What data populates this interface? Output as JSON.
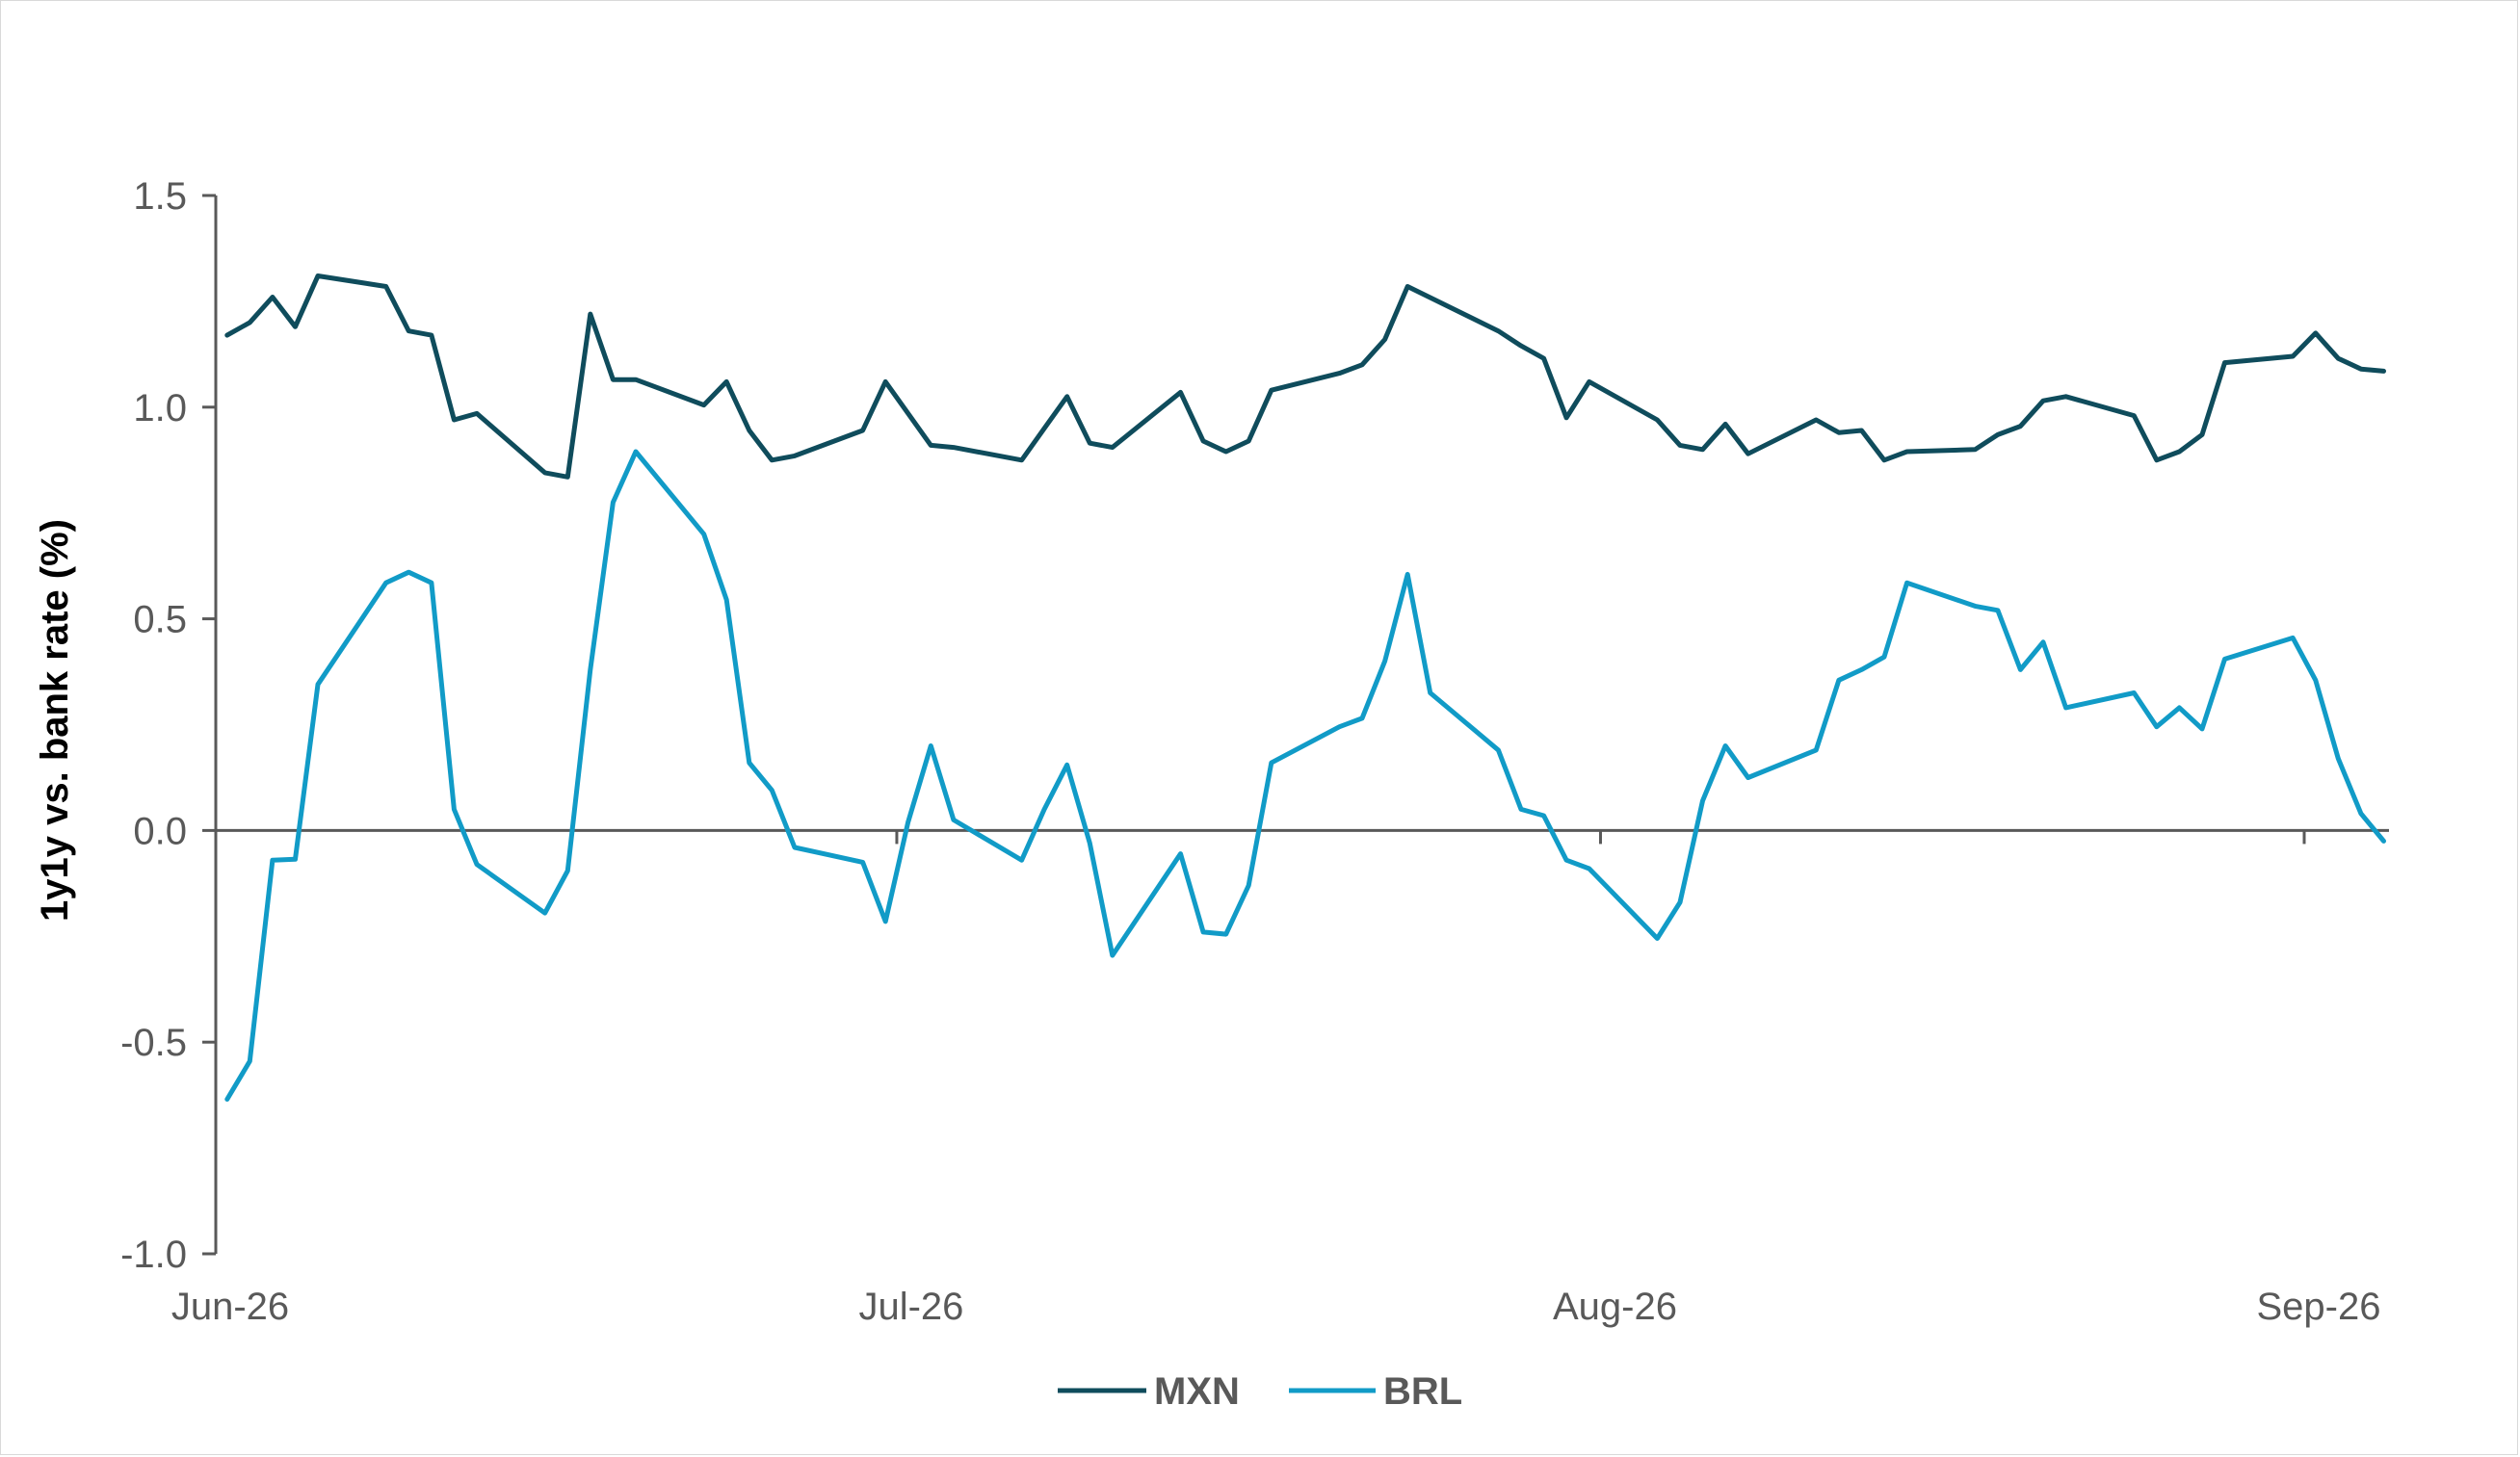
{
  "chart_data": {
    "type": "line",
    "ylabel": "1y1y vs. bank rate (%)",
    "xlabel": "",
    "ylim": [
      -1.0,
      1.5
    ],
    "yticks": [
      "1.5",
      "1.0",
      "0.5",
      "0.0",
      "-0.5",
      "-1.0"
    ],
    "yticks_values": [
      1.5,
      1.0,
      0.5,
      0.0,
      -0.5,
      -1.0
    ],
    "xlim": [
      0,
      92
    ],
    "xticks": [
      {
        "label": "Jun-26",
        "day": 0
      },
      {
        "label": "Jul-26",
        "day": 30
      },
      {
        "label": "Aug-26",
        "day": 61
      },
      {
        "label": "Sep-26",
        "day": 92
      }
    ],
    "grid": false,
    "legend_position": "bottom-center",
    "series": [
      {
        "name": "MXN",
        "color": "#0f4c5c",
        "points": [
          [
            0.5,
            1.17
          ],
          [
            1.5,
            1.2
          ],
          [
            2.5,
            1.26
          ],
          [
            3.5,
            1.19
          ],
          [
            4.5,
            1.31
          ],
          [
            7.5,
            1.285
          ],
          [
            8.5,
            1.18
          ],
          [
            9.5,
            1.17
          ],
          [
            10.5,
            0.97
          ],
          [
            11.5,
            0.985
          ],
          [
            14.5,
            0.845
          ],
          [
            15.5,
            0.835
          ],
          [
            16.5,
            1.22
          ],
          [
            17.5,
            1.065
          ],
          [
            18.5,
            1.065
          ],
          [
            21.5,
            1.005
          ],
          [
            22.5,
            1.06
          ],
          [
            23.5,
            0.945
          ],
          [
            24.5,
            0.875
          ],
          [
            25.5,
            0.885
          ],
          [
            28.5,
            0.945
          ],
          [
            29.5,
            1.06
          ],
          [
            31.5,
            0.91
          ],
          [
            32.5,
            0.905
          ],
          [
            35.5,
            0.875
          ],
          [
            36.5,
            0.95
          ],
          [
            37.5,
            1.025
          ],
          [
            38.5,
            0.915
          ],
          [
            39.5,
            0.905
          ],
          [
            42.5,
            1.035
          ],
          [
            43.5,
            0.92
          ],
          [
            44.5,
            0.895
          ],
          [
            45.5,
            0.92
          ],
          [
            46.5,
            1.04
          ],
          [
            49.5,
            1.08
          ],
          [
            50.5,
            1.1
          ],
          [
            51.5,
            1.16
          ],
          [
            52.5,
            1.285
          ],
          [
            56.5,
            1.18
          ],
          [
            57.5,
            1.145
          ],
          [
            58.5,
            1.115
          ],
          [
            59.5,
            0.975
          ],
          [
            60.5,
            1.06
          ],
          [
            63.5,
            0.97
          ],
          [
            64.5,
            0.91
          ],
          [
            65.5,
            0.9
          ],
          [
            66.5,
            0.96
          ],
          [
            67.5,
            0.89
          ],
          [
            70.5,
            0.97
          ],
          [
            71.5,
            0.94
          ],
          [
            72.5,
            0.945
          ],
          [
            73.5,
            0.875
          ],
          [
            74.5,
            0.895
          ],
          [
            77.5,
            0.9
          ],
          [
            78.5,
            0.935
          ],
          [
            79.5,
            0.955
          ],
          [
            80.5,
            1.015
          ],
          [
            81.5,
            1.025
          ],
          [
            84.5,
            0.98
          ],
          [
            85.5,
            0.875
          ],
          [
            86.5,
            0.895
          ],
          [
            87.5,
            0.935
          ],
          [
            88.5,
            1.105
          ],
          [
            91.5,
            1.12
          ],
          [
            92.5,
            1.175
          ],
          [
            93.5,
            1.115
          ],
          [
            94.5,
            1.09
          ],
          [
            95.5,
            1.085
          ]
        ]
      },
      {
        "name": "BRL",
        "color": "#119bc7",
        "points": [
          [
            0.5,
            -0.635
          ],
          [
            1.5,
            -0.545
          ],
          [
            2.5,
            -0.07
          ],
          [
            3.5,
            -0.068
          ],
          [
            4.5,
            0.345
          ],
          [
            7.5,
            0.585
          ],
          [
            8.5,
            0.61
          ],
          [
            9.5,
            0.585
          ],
          [
            10.5,
            0.05
          ],
          [
            11.5,
            -0.08
          ],
          [
            14.5,
            -0.195
          ],
          [
            15.5,
            -0.095
          ],
          [
            16.5,
            0.38
          ],
          [
            17.5,
            0.775
          ],
          [
            18.5,
            0.895
          ],
          [
            21.5,
            0.7
          ],
          [
            22.5,
            0.545
          ],
          [
            23.5,
            0.16
          ],
          [
            24.5,
            0.095
          ],
          [
            25.5,
            -0.04
          ],
          [
            28.5,
            -0.075
          ],
          [
            29.5,
            -0.215
          ],
          [
            30.5,
            0.02
          ],
          [
            31.5,
            0.2
          ],
          [
            32.5,
            0.025
          ],
          [
            35.5,
            -0.07
          ],
          [
            36.5,
            0.05
          ],
          [
            37.5,
            0.155
          ],
          [
            38.5,
            -0.03
          ],
          [
            39.5,
            -0.295
          ],
          [
            42.5,
            -0.055
          ],
          [
            43.5,
            -0.24
          ],
          [
            44.5,
            -0.245
          ],
          [
            45.5,
            -0.13
          ],
          [
            46.5,
            0.16
          ],
          [
            49.5,
            0.245
          ],
          [
            50.5,
            0.265
          ],
          [
            51.5,
            0.4
          ],
          [
            52.5,
            0.605
          ],
          [
            53.5,
            0.325
          ],
          [
            56.5,
            0.19
          ],
          [
            57.5,
            0.05
          ],
          [
            58.5,
            0.035
          ],
          [
            59.5,
            -0.07
          ],
          [
            60.5,
            -0.09
          ],
          [
            63.5,
            -0.255
          ],
          [
            64.5,
            -0.17
          ],
          [
            65.5,
            0.07
          ],
          [
            66.5,
            0.2
          ],
          [
            67.5,
            0.125
          ],
          [
            70.5,
            0.19
          ],
          [
            71.5,
            0.355
          ],
          [
            72.5,
            0.38
          ],
          [
            73.5,
            0.41
          ],
          [
            74.5,
            0.585
          ],
          [
            77.5,
            0.53
          ],
          [
            78.5,
            0.52
          ],
          [
            79.5,
            0.38
          ],
          [
            80.5,
            0.445
          ],
          [
            81.5,
            0.29
          ],
          [
            84.5,
            0.325
          ],
          [
            85.5,
            0.245
          ],
          [
            86.5,
            0.29
          ],
          [
            87.5,
            0.24
          ],
          [
            88.5,
            0.405
          ],
          [
            91.5,
            0.455
          ],
          [
            92.5,
            0.355
          ],
          [
            93.5,
            0.17
          ],
          [
            94.5,
            0.04
          ],
          [
            95.5,
            -0.025
          ]
        ]
      }
    ]
  }
}
